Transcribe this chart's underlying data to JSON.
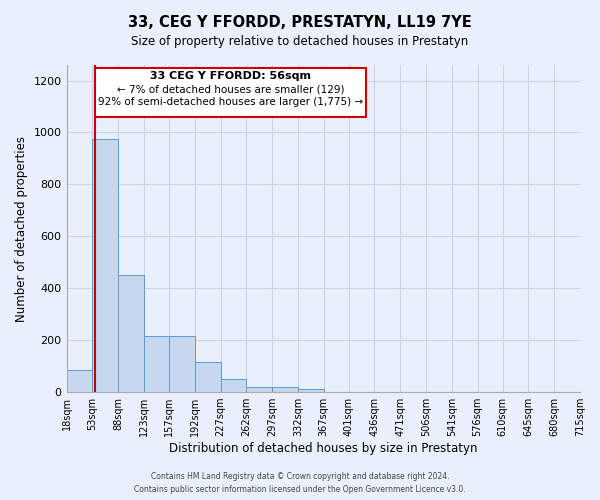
{
  "title": "33, CEG Y FFORDD, PRESTATYN, LL19 7YE",
  "subtitle": "Size of property relative to detached houses in Prestatyn",
  "xlabel": "Distribution of detached houses by size in Prestatyn",
  "ylabel": "Number of detached properties",
  "bin_edges": [
    18,
    53,
    88,
    123,
    157,
    192,
    227,
    262,
    297,
    332,
    367,
    401,
    436,
    471,
    506,
    541,
    576,
    610,
    645,
    680,
    715
  ],
  "bin_labels": [
    "18sqm",
    "53sqm",
    "88sqm",
    "123sqm",
    "157sqm",
    "192sqm",
    "227sqm",
    "262sqm",
    "297sqm",
    "332sqm",
    "367sqm",
    "401sqm",
    "436sqm",
    "471sqm",
    "506sqm",
    "541sqm",
    "576sqm",
    "610sqm",
    "645sqm",
    "680sqm",
    "715sqm"
  ],
  "bar_heights": [
    85,
    975,
    450,
    215,
    215,
    115,
    50,
    20,
    20,
    10,
    0,
    0,
    0,
    0,
    0,
    0,
    0,
    0,
    0,
    0
  ],
  "bar_color": "#c5d8f0",
  "bar_edge_color": "#5b9bd5",
  "red_line_x": 56,
  "red_line_color": "#cc0000",
  "ylim": [
    0,
    1260
  ],
  "yticks": [
    0,
    200,
    400,
    600,
    800,
    1000,
    1200
  ],
  "annotation_line1": "33 CEG Y FFORDD: 56sqm",
  "annotation_line2": "← 7% of detached houses are smaller (129)",
  "annotation_line3": "92% of semi-detached houses are larger (1,775) →",
  "footer_line1": "Contains HM Land Registry data © Crown copyright and database right 2024.",
  "footer_line2": "Contains public sector information licensed under the Open Government Licence v3.0.",
  "bg_color": "#eaf0fb",
  "grid_color": "#c8d4ea"
}
